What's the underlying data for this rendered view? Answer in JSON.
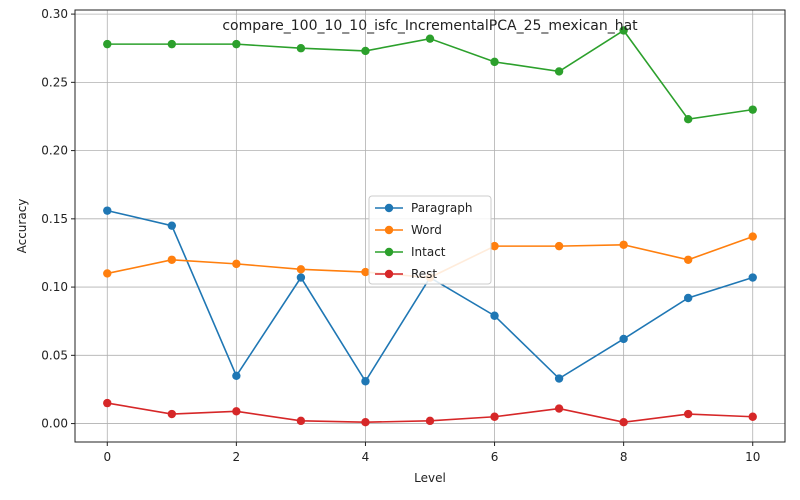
{
  "chart_data": {
    "type": "line",
    "title": "compare_100_10_10_isfc_IncrementalPCA_25_mexican_hat",
    "xlabel": "Level",
    "ylabel": "Accuracy",
    "x": [
      0,
      1,
      2,
      3,
      4,
      5,
      6,
      7,
      8,
      9,
      10
    ],
    "xlim": [
      -0.5,
      10.5
    ],
    "ylim": [
      -0.0135,
      0.303
    ],
    "xticks": [
      0,
      2,
      4,
      6,
      8,
      10
    ],
    "xtick_labels": [
      "0",
      "2",
      "4",
      "6",
      "8",
      "10"
    ],
    "yticks": [
      0.0,
      0.05,
      0.1,
      0.15,
      0.2,
      0.25,
      0.3
    ],
    "ytick_labels": [
      "0.00",
      "0.05",
      "0.10",
      "0.15",
      "0.20",
      "0.25",
      "0.30"
    ],
    "grid": true,
    "legend_position": "center",
    "series": [
      {
        "name": "Paragraph",
        "color": "#1f77b4",
        "values": [
          0.156,
          0.145,
          0.035,
          0.107,
          0.031,
          0.107,
          0.079,
          0.033,
          0.062,
          0.092,
          0.107
        ]
      },
      {
        "name": "Word",
        "color": "#ff7f0e",
        "values": [
          0.11,
          0.12,
          0.117,
          0.113,
          0.111,
          0.107,
          0.13,
          0.13,
          0.131,
          0.12,
          0.137
        ]
      },
      {
        "name": "Intact",
        "color": "#2ca02c",
        "values": [
          0.278,
          0.278,
          0.278,
          0.275,
          0.273,
          0.282,
          0.265,
          0.258,
          0.288,
          0.223,
          0.23
        ]
      },
      {
        "name": "Rest",
        "color": "#d62728",
        "values": [
          0.015,
          0.007,
          0.009,
          0.002,
          0.001,
          0.002,
          0.005,
          0.011,
          0.001,
          0.007,
          0.005
        ]
      }
    ]
  }
}
